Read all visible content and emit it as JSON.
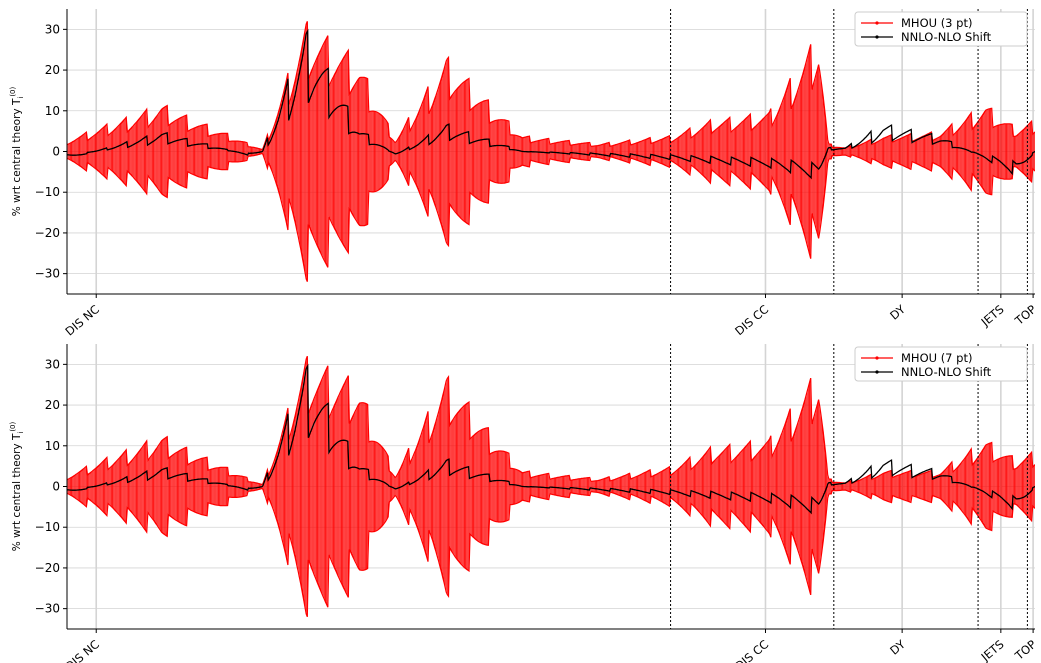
{
  "chart_data": [
    {
      "type": "line",
      "ylabel": "% wrt central theory T",
      "ylabel_sup": "(0)",
      "ylabel_sub": "i",
      "ylim": [
        -35,
        35
      ],
      "yticks": [
        -30,
        -20,
        -10,
        0,
        10,
        20,
        30
      ],
      "ytick_labels": [
        "−30",
        "−20",
        "−10",
        "0",
        "10",
        "20",
        "30"
      ],
      "grid": true,
      "legend_position": "top-right",
      "groups": [
        {
          "label": "DIS NC",
          "start": 0,
          "end": 1590,
          "tick": 77
        },
        {
          "label": "DIS CC",
          "start": 1590,
          "end": 2020,
          "tick": 1840
        },
        {
          "label": "DY",
          "start": 2020,
          "end": 2400,
          "tick": 2200
        },
        {
          "label": "JETS",
          "start": 2400,
          "end": 2530,
          "tick": 2460
        },
        {
          "label": "TOP",
          "start": 2530,
          "end": 2550,
          "tick": 2545
        }
      ],
      "x_range": [
        0,
        2550
      ],
      "series": [
        {
          "name": "MHOU (3 pt)",
          "color": "#ff0000",
          "style": "symmetric-band",
          "x": [
            0,
            250,
            480,
            515,
            630,
            770,
            865,
            1000,
            1200,
            1400,
            1590,
            1700,
            1850,
            1980,
            2005,
            2050,
            2150,
            2300,
            2420,
            2500,
            2550
          ],
          "values": [
            3,
            12,
            2,
            0.5,
            33,
            23,
            3,
            24,
            4,
            2,
            4,
            8,
            10,
            30,
            2,
            1,
            4,
            5,
            12,
            6,
            8
          ]
        },
        {
          "name": "NNLO-NLO Shift",
          "color": "#000000",
          "style": "line",
          "x": [
            0,
            250,
            480,
            515,
            630,
            770,
            865,
            1000,
            1200,
            1400,
            1590,
            1700,
            1850,
            1980,
            2005,
            2050,
            2150,
            2300,
            2420,
            2500,
            2550
          ],
          "values": [
            -2,
            5,
            -1,
            0,
            31,
            6,
            -1,
            7,
            0,
            -1,
            -2,
            -3,
            -4,
            -7,
            1,
            1,
            7,
            4,
            -2,
            -6,
            0
          ]
        }
      ]
    },
    {
      "type": "line",
      "ylabel": "% wrt central theory T",
      "ylabel_sup": "(0)",
      "ylabel_sub": "i",
      "ylim": [
        -35,
        35
      ],
      "yticks": [
        -30,
        -20,
        -10,
        0,
        10,
        20,
        30
      ],
      "ytick_labels": [
        "−30",
        "−20",
        "−10",
        "0",
        "10",
        "20",
        "30"
      ],
      "grid": true,
      "legend_position": "top-right",
      "groups": [
        {
          "label": "DIS NC",
          "start": 0,
          "end": 1590,
          "tick": 77
        },
        {
          "label": "DIS CC",
          "start": 1590,
          "end": 2020,
          "tick": 1840
        },
        {
          "label": "DY",
          "start": 2020,
          "end": 2400,
          "tick": 2200
        },
        {
          "label": "JETS",
          "start": 2400,
          "end": 2530,
          "tick": 2460
        },
        {
          "label": "TOP",
          "start": 2530,
          "end": 2550,
          "tick": 2545
        }
      ],
      "x_range": [
        0,
        2550
      ],
      "series": [
        {
          "name": "MHOU (7 pt)",
          "color": "#ff0000",
          "style": "symmetric-band",
          "x": [
            0,
            250,
            480,
            515,
            630,
            770,
            865,
            1000,
            1200,
            1400,
            1590,
            1700,
            1850,
            1980,
            2005,
            2050,
            2150,
            2300,
            2420,
            2500,
            2550
          ],
          "values": [
            3,
            13,
            2,
            0.5,
            33,
            26,
            3,
            28,
            4,
            2,
            5,
            10,
            12,
            30,
            2,
            1,
            4,
            4,
            12,
            7,
            9
          ]
        },
        {
          "name": "NNLO-NLO Shift",
          "color": "#000000",
          "style": "line",
          "x": [
            0,
            250,
            480,
            515,
            630,
            770,
            865,
            1000,
            1200,
            1400,
            1590,
            1700,
            1850,
            1980,
            2005,
            2050,
            2150,
            2300,
            2420,
            2500,
            2550
          ],
          "values": [
            -2,
            5,
            -1,
            0,
            31,
            6,
            -1,
            7,
            0,
            -1,
            -2,
            -3,
            -4,
            -7,
            1,
            1,
            7,
            4,
            -2,
            -6,
            0
          ]
        }
      ]
    }
  ]
}
